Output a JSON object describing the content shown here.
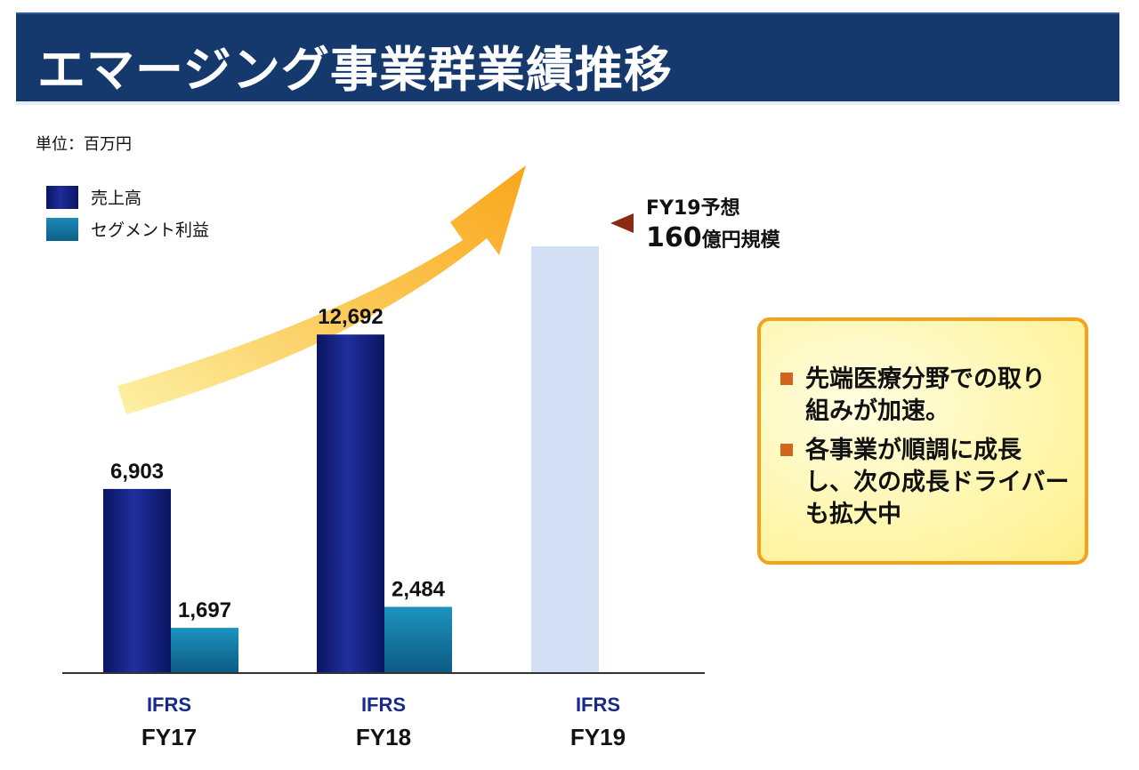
{
  "title": "エマージング事業群業績推移",
  "unit": "単位：百万円",
  "legend": {
    "sales": "売上高",
    "profit": "セグメント利益"
  },
  "forecast": {
    "line1": "FY19予想",
    "line2_number": "160",
    "line2_suffix": "億円規模"
  },
  "callout": {
    "bullets": [
      "先端医療分野での取り\n組みが加速。",
      "各事業が順調に成長\nし、次の成長ドライバー\nも拡大中"
    ]
  },
  "chart_data": {
    "type": "bar",
    "title": "エマージング事業群業績推移",
    "ylabel": "単位：百万円",
    "ylim": [
      0,
      20000
    ],
    "categories": [
      "FY17",
      "FY18",
      "FY19"
    ],
    "category_sublabels": [
      "IFRS",
      "IFRS",
      "IFRS"
    ],
    "series": [
      {
        "name": "売上高",
        "values": [
          6903,
          12692,
          16000
        ],
        "labels": [
          "6,903",
          "12,692",
          null
        ],
        "forecast": [
          false,
          false,
          true
        ]
      },
      {
        "name": "セグメント利益",
        "values": [
          1697,
          2484,
          null
        ],
        "labels": [
          "1,697",
          "2,484",
          null
        ]
      }
    ],
    "annotations": [
      "FY19予想 160億円規模"
    ],
    "colors": {
      "sales": "#0e1a73",
      "profit": "#138bb8",
      "forecast": "#d3dff5",
      "arrow": "#fbb12a"
    }
  }
}
